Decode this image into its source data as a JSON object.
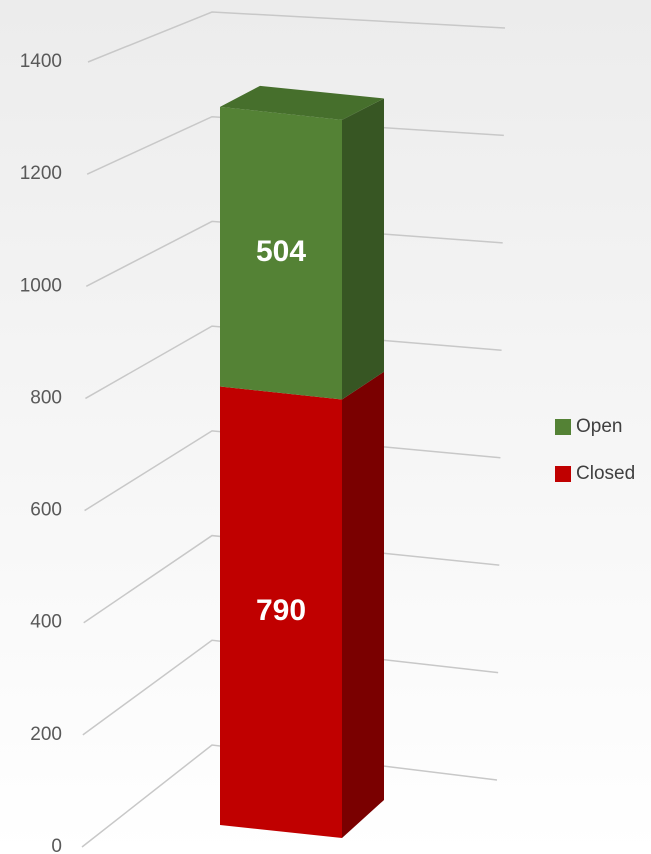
{
  "chart_data": {
    "type": "bar3d_stacked",
    "categories": [
      null
    ],
    "series": [
      {
        "name": "Closed",
        "color": "#c00000",
        "side_color": "#7a0000",
        "top_color": "#a00000",
        "values": [
          790
        ]
      },
      {
        "name": "Open",
        "color": "#548235",
        "side_color": "#375623",
        "top_color": "#466f2c",
        "values": [
          504
        ]
      }
    ],
    "ylim": [
      0,
      1400
    ],
    "yticks": [
      0,
      200,
      400,
      600,
      800,
      1000,
      1200,
      1400
    ],
    "grid": true,
    "legend": "right"
  }
}
